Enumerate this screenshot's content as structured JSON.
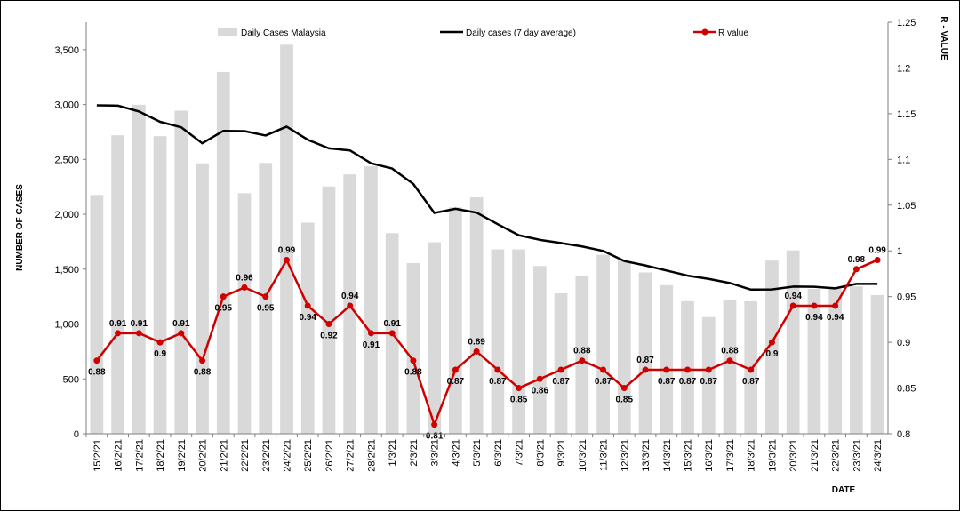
{
  "chart_data": {
    "type": "bar",
    "title": "",
    "xlabel": "DATE",
    "ylabel": "NUMBER  OF CASES",
    "y2label": "R - VALUE",
    "ylim": [
      0,
      3750
    ],
    "yticks": [
      0,
      500,
      1000,
      1500,
      2000,
      2500,
      3000,
      3500
    ],
    "y2lim": [
      0.8,
      1.25
    ],
    "y2ticks": [
      "0.8",
      "0.85",
      "0.9",
      "0.95",
      "1",
      "1.05",
      "1.1",
      "1.15",
      "1.2",
      "1.25"
    ],
    "x_tick_labels": [
      "15/2/21",
      "16/2/21",
      "17/2/21",
      "18/2/21",
      "19/2/21",
      "20/2/21",
      "21/2/21",
      "22/2/21",
      "23/2/21",
      "24/2/21",
      "25/2/21",
      "26/2/21",
      "27/2/21",
      "28/2/21",
      "1/3/21",
      "2/3/21",
      "3/3/21",
      "4/3/21",
      "5/3/21",
      "6/3/21",
      "7/3/21",
      "8/3/21",
      "9/3/21",
      "10/3/21",
      "11/3/21",
      "12/3/21",
      "13/3/21",
      "14/3/21",
      "15/3/21",
      "16/3/21",
      "17/3/21",
      "18/3/21",
      "19/3/21",
      "20/3/21",
      "21/3/21",
      "22/3/21",
      "23/3/21",
      "24/3/21"
    ],
    "legend_position": "top",
    "series": [
      {
        "name": "Daily Cases Malaysia",
        "type": "bar",
        "axis": "left",
        "color": "#d9d9d9",
        "values": [
          2176,
          2720,
          2998,
          2712,
          2944,
          2464,
          3297,
          2192,
          2468,
          3545,
          1924,
          2253,
          2364,
          2437,
          1828,
          1555,
          1745,
          2063,
          2154,
          1680,
          1680,
          1529,
          1280,
          1441,
          1631,
          1575,
          1470,
          1354,
          1208,
          1063,
          1219,
          1208,
          1578,
          1671,
          1320,
          1320,
          1342,
          1264
        ]
      },
      {
        "name": "Daily cases (7 day average)",
        "type": "line",
        "axis": "left",
        "color": "#000000",
        "values": [
          2993,
          2990,
          2937,
          2843,
          2793,
          2647,
          2760,
          2758,
          2718,
          2799,
          2679,
          2601,
          2582,
          2465,
          2417,
          2277,
          2012,
          2050,
          2015,
          1910,
          1809,
          1767,
          1738,
          1707,
          1666,
          1574,
          1534,
          1488,
          1441,
          1411,
          1374,
          1314,
          1315,
          1341,
          1339,
          1325,
          1366,
          1366
        ]
      },
      {
        "name": "R value",
        "type": "line",
        "axis": "right",
        "color": "#d00000",
        "values": [
          0.88,
          0.91,
          0.91,
          0.9,
          0.91,
          0.88,
          0.95,
          0.96,
          0.95,
          0.99,
          0.94,
          0.92,
          0.94,
          0.91,
          0.91,
          0.88,
          0.81,
          0.87,
          0.89,
          0.87,
          0.85,
          0.86,
          0.87,
          0.88,
          0.87,
          0.85,
          0.87,
          0.87,
          0.87,
          0.87,
          0.88,
          0.87,
          0.9,
          0.94,
          0.94,
          0.94,
          0.98,
          0.99
        ],
        "labels": [
          "0.88",
          "0.91",
          "0.91",
          "0.9",
          "0.91",
          "0.88",
          "0.95",
          "0.96",
          "0.95",
          "0.99",
          "0.94",
          "0.92",
          "0.94",
          "0.91",
          "0.91",
          "0.88",
          "0.81",
          "0.87",
          "0.89",
          "0.87",
          "0.85",
          "0.86",
          "0.87",
          "0.88",
          "0.87",
          "0.85",
          "0.87",
          "0.87",
          "0.87",
          "0.87",
          "0.88",
          "0.87",
          "0.9",
          "0.94",
          "0.94",
          "0.94",
          "0.98",
          "0.99"
        ]
      }
    ]
  }
}
